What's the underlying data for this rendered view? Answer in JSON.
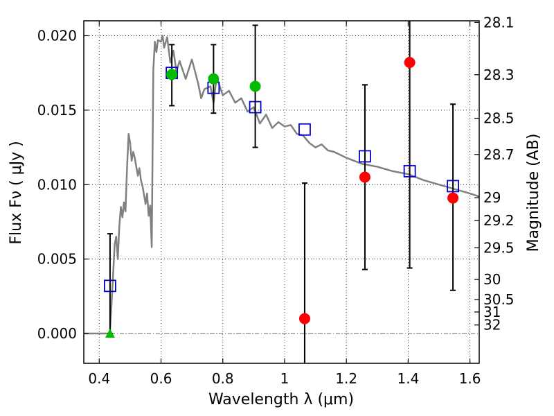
{
  "chart_data": {
    "type": "scatter",
    "xlabel": "Wavelength  λ (μm)",
    "ylabel": "Flux  Fν  ( μJy )",
    "y2label": "Magnitude (AB)",
    "xlim": [
      0.35,
      1.63
    ],
    "ylim": [
      -0.002,
      0.021
    ],
    "grid": true,
    "x_ticks": [
      {
        "value": 0.4,
        "label": "0.4"
      },
      {
        "value": 0.6,
        "label": "0.6"
      },
      {
        "value": 0.8,
        "label": "0.8"
      },
      {
        "value": 1.0,
        "label": "1"
      },
      {
        "value": 1.2,
        "label": "1.2"
      },
      {
        "value": 1.4,
        "label": "1.4"
      },
      {
        "value": 1.6,
        "label": "1.6"
      }
    ],
    "y_ticks": [
      {
        "value": 0.0,
        "label": "0.000"
      },
      {
        "value": 0.005,
        "label": "0.005"
      },
      {
        "value": 0.01,
        "label": "0.010"
      },
      {
        "value": 0.015,
        "label": "0.015"
      },
      {
        "value": 0.02,
        "label": "0.020"
      }
    ],
    "y2_ticks": [
      {
        "mag": 28.1,
        "label": "28.1"
      },
      {
        "mag": 28.3,
        "label": "28.3"
      },
      {
        "mag": 28.5,
        "label": "28.5"
      },
      {
        "mag": 28.7,
        "label": "28.7"
      },
      {
        "mag": 29.0,
        "label": "29"
      },
      {
        "mag": 29.2,
        "label": "29.2"
      },
      {
        "mag": 29.5,
        "label": "29.5"
      },
      {
        "mag": 30.0,
        "label": "30"
      },
      {
        "mag": 30.5,
        "label": "30.5"
      },
      {
        "mag": 31.0,
        "label": "31"
      },
      {
        "mag": 32.0,
        "label": "32"
      }
    ],
    "sed_model": {
      "color": "#808080",
      "x": [
        0.35,
        0.43,
        0.435,
        0.44,
        0.445,
        0.45,
        0.455,
        0.46,
        0.465,
        0.47,
        0.475,
        0.48,
        0.485,
        0.49,
        0.495,
        0.5,
        0.505,
        0.51,
        0.515,
        0.52,
        0.525,
        0.53,
        0.535,
        0.54,
        0.545,
        0.55,
        0.555,
        0.56,
        0.565,
        0.57,
        0.575,
        0.58,
        0.585,
        0.59,
        0.6,
        0.605,
        0.61,
        0.62,
        0.63,
        0.64,
        0.65,
        0.66,
        0.68,
        0.7,
        0.72,
        0.73,
        0.74,
        0.76,
        0.77,
        0.78,
        0.8,
        0.82,
        0.84,
        0.86,
        0.88,
        0.9,
        0.92,
        0.94,
        0.96,
        0.98,
        1.0,
        1.02,
        1.04,
        1.06,
        1.08,
        1.1,
        1.12,
        1.14,
        1.16,
        1.2,
        1.25,
        1.3,
        1.35,
        1.4,
        1.45,
        1.5,
        1.55,
        1.6,
        1.63
      ],
      "y": [
        0.0,
        0.0,
        0.0002,
        0.002,
        0.004,
        0.006,
        0.0065,
        0.005,
        0.0072,
        0.0085,
        0.0078,
        0.0088,
        0.0082,
        0.0112,
        0.0134,
        0.0128,
        0.0116,
        0.0122,
        0.0118,
        0.0112,
        0.0106,
        0.0111,
        0.0103,
        0.0099,
        0.0093,
        0.0087,
        0.0094,
        0.0079,
        0.0086,
        0.0058,
        0.0177,
        0.0196,
        0.0189,
        0.0197,
        0.0196,
        0.02,
        0.0192,
        0.0199,
        0.0182,
        0.019,
        0.0176,
        0.0183,
        0.0171,
        0.0184,
        0.0168,
        0.0158,
        0.0164,
        0.0166,
        0.0155,
        0.0172,
        0.016,
        0.0163,
        0.0155,
        0.0158,
        0.0149,
        0.0152,
        0.0141,
        0.0147,
        0.0138,
        0.0142,
        0.0139,
        0.014,
        0.0134,
        0.0133,
        0.0128,
        0.0125,
        0.0127,
        0.0123,
        0.0122,
        0.0118,
        0.0114,
        0.0112,
        0.0109,
        0.0107,
        0.0103,
        0.01,
        0.0097,
        0.0094,
        0.0092
      ]
    },
    "model_photometry": {
      "color": "#0000cc",
      "marker": "square",
      "x": [
        0.435,
        0.635,
        0.77,
        0.905,
        1.065,
        1.26,
        1.405,
        1.545
      ],
      "y": [
        0.0032,
        0.0175,
        0.0165,
        0.0152,
        0.0137,
        0.0119,
        0.0109,
        0.0099
      ]
    },
    "observed_photometry": {
      "color_detected": "#00bb00",
      "color_low_snr": "#ff0000",
      "points": [
        {
          "x": 0.435,
          "y": 0.0,
          "err_low": 0.0,
          "err_high": 0.0067,
          "status": "detected",
          "marker": "triangle"
        },
        {
          "x": 0.635,
          "y": 0.0174,
          "err_low": 0.0153,
          "err_high": 0.0194,
          "status": "detected",
          "marker": "circle"
        },
        {
          "x": 0.77,
          "y": 0.0171,
          "err_low": 0.0148,
          "err_high": 0.0194,
          "status": "detected",
          "marker": "circle"
        },
        {
          "x": 0.905,
          "y": 0.0166,
          "err_low": 0.0125,
          "err_high": 0.0207,
          "status": "detected",
          "marker": "circle"
        },
        {
          "x": 1.065,
          "y": 0.001,
          "err_low": -0.002,
          "err_high": 0.0101,
          "status": "low_snr",
          "marker": "circle"
        },
        {
          "x": 1.26,
          "y": 0.0105,
          "err_low": 0.0043,
          "err_high": 0.0167,
          "status": "low_snr",
          "marker": "circle"
        },
        {
          "x": 1.405,
          "y": 0.0182,
          "err_low": 0.0044,
          "err_high": 0.021,
          "status": "low_snr",
          "marker": "circle"
        },
        {
          "x": 1.545,
          "y": 0.0091,
          "err_low": 0.0029,
          "err_high": 0.0154,
          "status": "low_snr",
          "marker": "circle"
        }
      ]
    }
  }
}
